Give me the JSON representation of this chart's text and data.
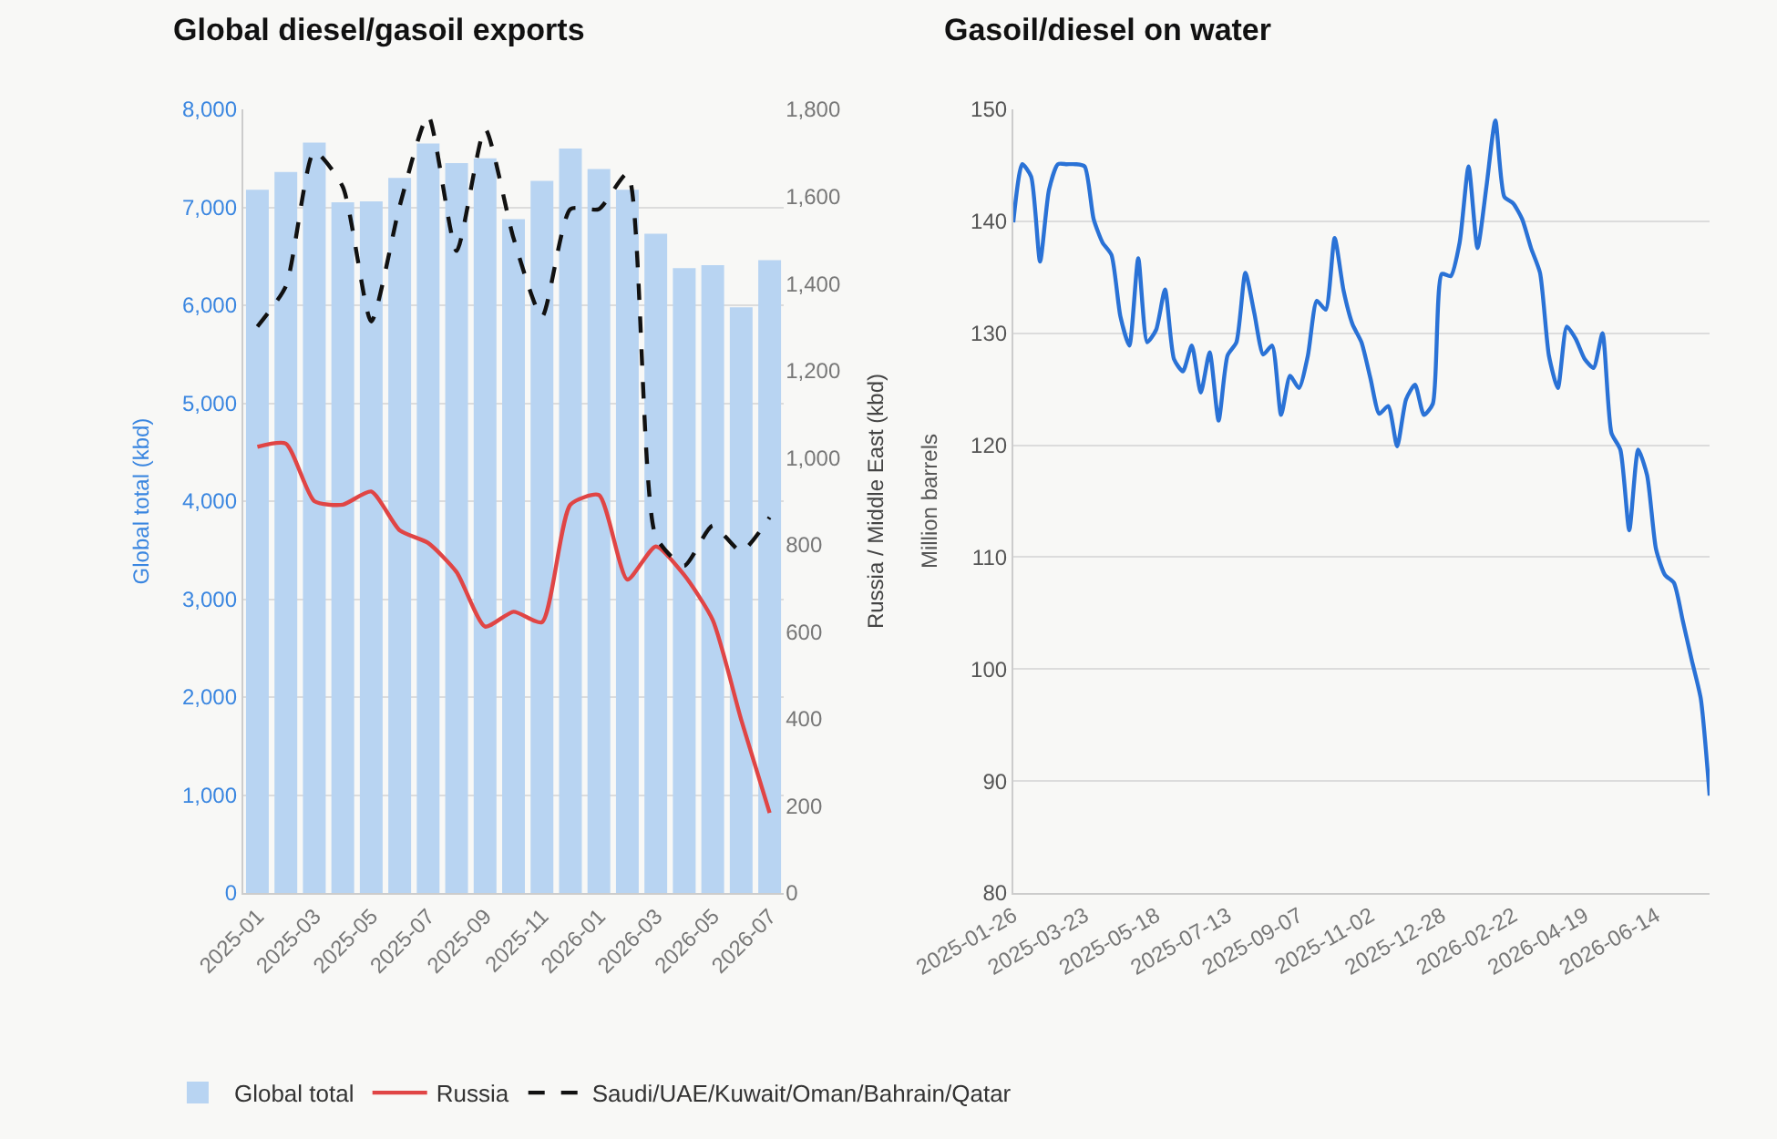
{
  "chart_data": [
    {
      "type": "bar",
      "title": "Global diesel/gasoil exports",
      "ylabel": "Global total (kbd)",
      "y2label": "Russia / Middle East (kbd)",
      "categories": [
        "2025-01",
        null,
        "2025-03",
        null,
        "2025-05",
        null,
        "2025-07",
        null,
        "2025-09",
        null,
        "2025-11",
        null,
        "2026-01",
        null,
        "2026-03",
        null,
        "2026-05",
        null,
        "2026-07"
      ],
      "series": [
        {
          "name": "Global total",
          "type": "bar",
          "color": "#b8d4f2",
          "values": [
            7180,
            7360,
            7660,
            7050,
            7060,
            7300,
            7650,
            7450,
            7500,
            6880,
            7270,
            7600,
            7390,
            7180,
            6730,
            6380,
            6410,
            5980,
            6460
          ]
        },
        {
          "name": "Russia",
          "type": "line",
          "axis": "y2",
          "color": "#e04545",
          "line_style": "solid",
          "values": [
            1025,
            1032,
            900,
            892,
            922,
            833,
            804,
            737,
            612,
            646,
            622,
            892,
            914,
            720,
            796,
            730,
            627,
            398,
            184
          ]
        },
        {
          "name": "Saudi/UAE/Kuwait/Oman/Bahrain/Qatar",
          "type": "line",
          "axis": "y2",
          "color": "#111111",
          "line_style": "dashed",
          "values": [
            1301,
            1394,
            1703,
            1622,
            1313,
            1578,
            1785,
            1475,
            1755,
            1504,
            1324,
            1571,
            1571,
            1652,
            819,
            752,
            844,
            785,
            863
          ]
        }
      ],
      "ylim": [
        0,
        8000
      ],
      "yticks": [
        0,
        {
          "value": 1000,
          "label": "1,000"
        },
        {
          "value": 2000,
          "label": "2,000"
        },
        {
          "value": 3000,
          "label": "3,000"
        },
        {
          "value": 4000,
          "label": "4,000"
        },
        {
          "value": 5000,
          "label": "5,000"
        },
        {
          "value": 6000,
          "label": "6,000"
        },
        {
          "value": 7000,
          "label": "7,000"
        },
        {
          "value": 8000,
          "label": "8,000"
        }
      ],
      "y2lim": [
        0,
        1800
      ],
      "y2ticks": [
        0,
        200,
        400,
        600,
        800,
        {
          "value": 1000,
          "label": "1,000"
        },
        {
          "value": 1200,
          "label": "1,200"
        },
        {
          "value": 1400,
          "label": "1,400"
        },
        {
          "value": 1600,
          "label": "1,600"
        },
        {
          "value": 1800,
          "label": "1,800"
        }
      ],
      "grid": "y",
      "legend": "bottom",
      "marker": "none"
    },
    {
      "type": "line",
      "title": "Gasoil/diesel on water",
      "ylabel": "Million barrels",
      "x": [
        "2025-01-26",
        "2025-02-02",
        "2025-02-09",
        "2025-02-16",
        "2025-02-23",
        "2025-03-02",
        "2025-03-09",
        "2025-03-16",
        "2025-03-23",
        "2025-03-30",
        "2025-04-06",
        "2025-04-13",
        "2025-04-20",
        "2025-04-27",
        "2025-05-04",
        "2025-05-11",
        "2025-05-18",
        "2025-05-25",
        "2025-06-01",
        "2025-06-08",
        "2025-06-15",
        "2025-06-22",
        "2025-06-29",
        "2025-07-06",
        "2025-07-13",
        "2025-07-20",
        "2025-07-27",
        "2025-08-03",
        "2025-08-10",
        "2025-08-17",
        "2025-08-24",
        "2025-08-31",
        "2025-09-07",
        "2025-09-14",
        "2025-09-21",
        "2025-09-28",
        "2025-10-05",
        "2025-10-12",
        "2025-10-19",
        "2025-10-26",
        "2025-11-02",
        "2025-11-09",
        "2025-11-16",
        "2025-11-23",
        "2025-11-30",
        "2025-12-07",
        "2025-12-14",
        "2025-12-21",
        "2025-12-28",
        "2026-01-04",
        "2026-01-11",
        "2026-01-18",
        "2026-01-25",
        "2026-02-01",
        "2026-02-08",
        "2026-02-15",
        "2026-02-22",
        "2026-03-01",
        "2026-03-08",
        "2026-03-15",
        "2026-03-22",
        "2026-03-29",
        "2026-04-05",
        "2026-04-12",
        "2026-04-19",
        "2026-04-26",
        "2026-05-03",
        "2026-05-10",
        "2026-05-17",
        "2026-05-24",
        "2026-05-31",
        "2026-06-07",
        "2026-06-14",
        "2026-06-21",
        "2026-06-28",
        "2026-07-05",
        "2026-07-12",
        "2026-07-19",
        "2026-07-26"
      ],
      "series": [
        {
          "color": "#2a72d6",
          "line_style": "solid",
          "values": [
            139.9,
            145.1,
            144.0,
            136.4,
            142.8,
            145.1,
            145.1,
            145.1,
            144.9,
            140.2,
            138.1,
            137.0,
            131.5,
            128.9,
            136.7,
            129.2,
            130.3,
            133.9,
            127.7,
            126.6,
            128.9,
            124.7,
            128.3,
            122.2,
            128.0,
            129.2,
            135.4,
            131.8,
            128.1,
            128.9,
            122.7,
            126.2,
            125.1,
            128.0,
            132.9,
            132.1,
            138.5,
            133.8,
            130.8,
            129.2,
            126.0,
            122.8,
            123.5,
            119.9,
            124.1,
            125.4,
            122.7,
            123.7,
            135.3,
            135.1,
            138.1,
            144.9,
            137.6,
            143.1,
            149.0,
            142.2,
            141.6,
            140.2,
            137.6,
            135.4,
            128.0,
            125.1,
            130.6,
            129.5,
            127.7,
            126.9,
            130.0,
            121.1,
            119.6,
            112.4,
            119.6,
            117.3,
            110.7,
            108.4,
            107.7,
            104.3,
            100.8,
            97.4,
            88.7
          ]
        }
      ],
      "xlim": [
        "2025-01-26",
        "2026-07-26"
      ],
      "xticks": [
        "2025-01-26",
        "2025-03-23",
        "2025-05-18",
        "2025-07-13",
        "2025-09-07",
        "2025-11-02",
        "2025-12-28",
        "2026-02-22",
        "2026-04-19",
        "2026-06-14"
      ],
      "ylim": [
        80,
        150
      ],
      "yticks": [
        80,
        90,
        100,
        110,
        120,
        130,
        140,
        150
      ],
      "grid": "y",
      "legend": false,
      "marker": "none"
    }
  ]
}
